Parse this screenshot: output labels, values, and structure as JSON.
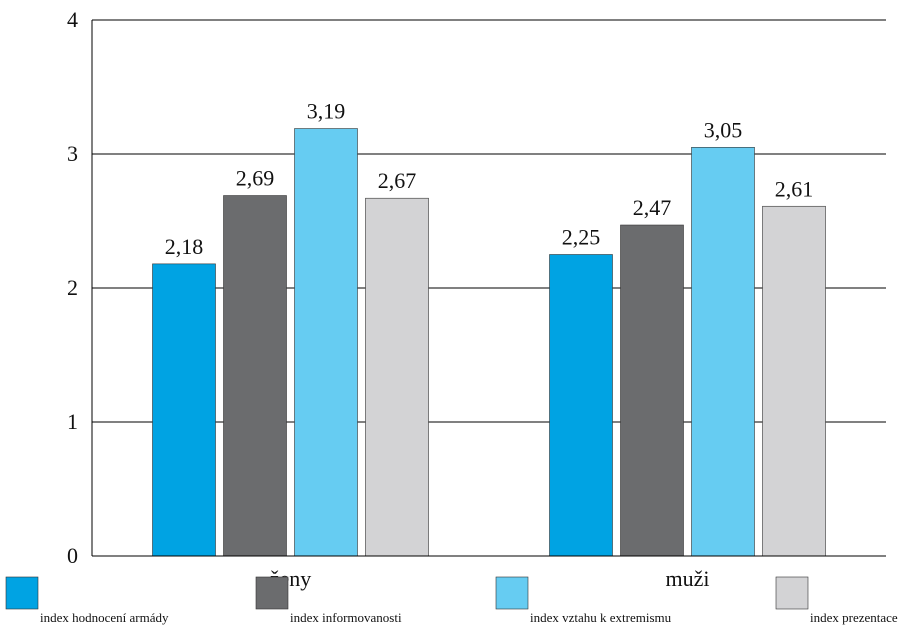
{
  "chart_data": {
    "type": "bar",
    "categories": [
      "ženy",
      "muži"
    ],
    "series": [
      {
        "name": "index hodnocení armády",
        "values": [
          2.18,
          2.25
        ],
        "labels": [
          "2,18",
          "2,25"
        ],
        "color": "#00a3e3"
      },
      {
        "name": "index informovanosti",
        "values": [
          2.69,
          2.47
        ],
        "labels": [
          "2,69",
          "2,47"
        ],
        "color": "#6b6c6e"
      },
      {
        "name": "index vztahu k extremismu",
        "values": [
          3.19,
          3.05
        ],
        "labels": [
          "3,19",
          "3,05"
        ],
        "color": "#66ccf2"
      },
      {
        "name": "index prezentace",
        "values": [
          2.67,
          2.61
        ],
        "labels": [
          "2,67",
          "2,61"
        ],
        "color": "#d3d3d5"
      }
    ],
    "ylim": [
      0,
      4
    ],
    "yticks": [
      "0",
      "1",
      "2",
      "3",
      "4"
    ],
    "grid": true,
    "legend": "bottom"
  }
}
